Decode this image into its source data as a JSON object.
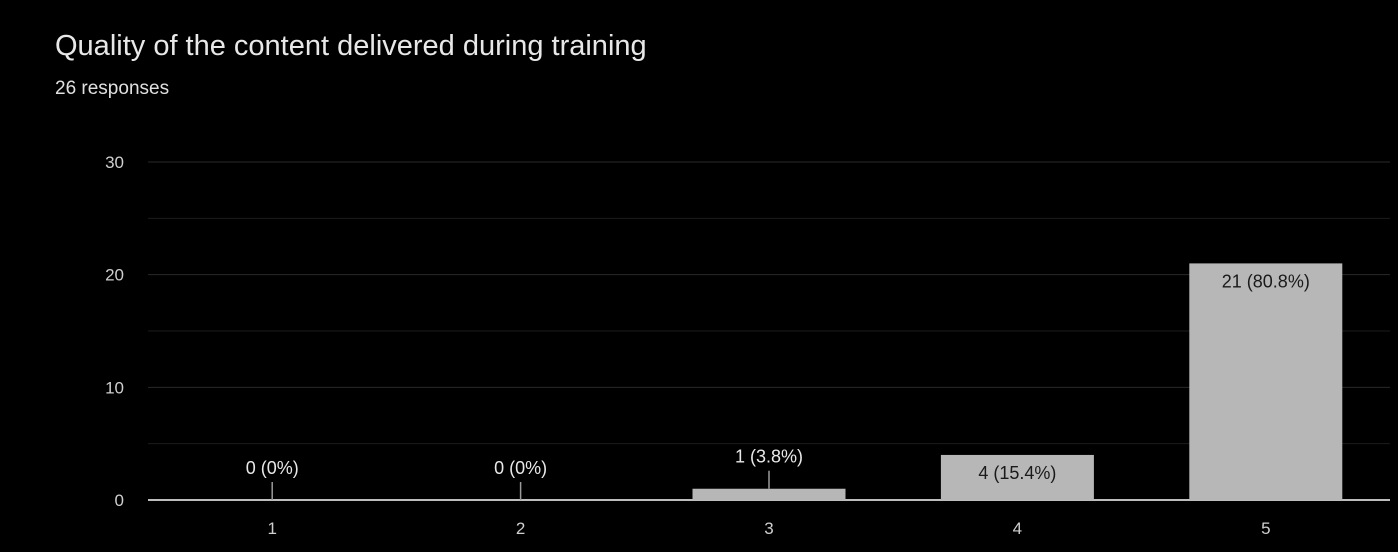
{
  "header": {
    "title": "Quality of the content delivered during training",
    "subtitle": "26 responses"
  },
  "colors": {
    "background": "#000000",
    "bar": "#b7b7b7",
    "grid": "#2a2a2a",
    "axis": "#bdbdbd",
    "text": "#e8e8e8"
  },
  "chart_data": {
    "type": "bar",
    "title": "Quality of the content delivered during training",
    "subtitle": "26 responses",
    "categories": [
      "1",
      "2",
      "3",
      "4",
      "5"
    ],
    "values": [
      0,
      0,
      1,
      4,
      21
    ],
    "data_labels": [
      "0 (0%)",
      "0 (0%)",
      "1 (3.8%)",
      "4 (15.4%)",
      "21 (80.8%)"
    ],
    "yticks": [
      0,
      10,
      20,
      30
    ],
    "ylim": [
      0,
      30
    ],
    "grid": true,
    "xlabel": "",
    "ylabel": ""
  }
}
